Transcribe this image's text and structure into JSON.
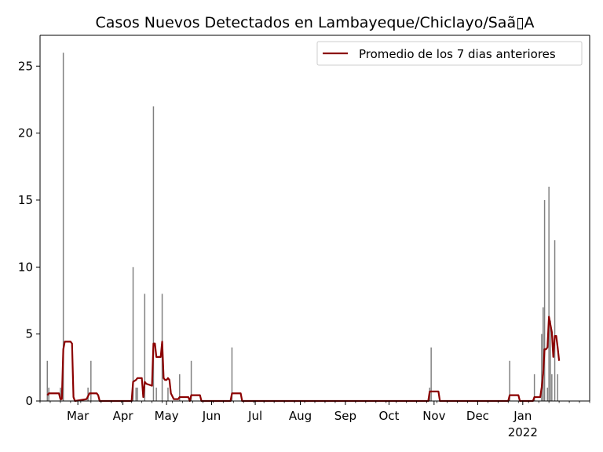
{
  "chart_data": {
    "type": "bar",
    "title": "Casos Nuevos Detectados en Lambayeque/Chiclayo/Saã▯A",
    "xlabel": "",
    "ylabel": "",
    "x_range": [
      "2021-02-03",
      "2022-02-16"
    ],
    "ylim": [
      0,
      27.3
    ],
    "y_ticks": [
      0,
      5,
      10,
      15,
      20,
      25
    ],
    "x_ticks": [
      {
        "date": "2021-03-01",
        "label": "Mar",
        "sublabel": ""
      },
      {
        "date": "2021-04-01",
        "label": "Apr",
        "sublabel": ""
      },
      {
        "date": "2021-05-01",
        "label": "May",
        "sublabel": ""
      },
      {
        "date": "2021-06-01",
        "label": "Jun",
        "sublabel": ""
      },
      {
        "date": "2021-07-01",
        "label": "Jul",
        "sublabel": ""
      },
      {
        "date": "2021-08-01",
        "label": "Aug",
        "sublabel": ""
      },
      {
        "date": "2021-09-01",
        "label": "Sep",
        "sublabel": ""
      },
      {
        "date": "2021-10-01",
        "label": "Oct",
        "sublabel": ""
      },
      {
        "date": "2021-11-01",
        "label": "Nov",
        "sublabel": ""
      },
      {
        "date": "2021-12-01",
        "label": "Dec",
        "sublabel": ""
      },
      {
        "date": "2022-01-01",
        "label": "Jan",
        "sublabel": "2022"
      }
    ],
    "grid": false,
    "legend_position": "top-right",
    "bar_color": "#808080",
    "line_color": "#8b0000",
    "bars": [
      {
        "date": "2021-02-08",
        "value": 3
      },
      {
        "date": "2021-02-09",
        "value": 1
      },
      {
        "date": "2021-02-17",
        "value": 1
      },
      {
        "date": "2021-02-19",
        "value": 26
      },
      {
        "date": "2021-03-08",
        "value": 1
      },
      {
        "date": "2021-03-10",
        "value": 3
      },
      {
        "date": "2021-04-08",
        "value": 10
      },
      {
        "date": "2021-04-10",
        "value": 1
      },
      {
        "date": "2021-04-11",
        "value": 1
      },
      {
        "date": "2021-04-16",
        "value": 8
      },
      {
        "date": "2021-04-22",
        "value": 22
      },
      {
        "date": "2021-04-24",
        "value": 1
      },
      {
        "date": "2021-04-28",
        "value": 8
      },
      {
        "date": "2021-05-02",
        "value": 1
      },
      {
        "date": "2021-05-10",
        "value": 2
      },
      {
        "date": "2021-05-18",
        "value": 3
      },
      {
        "date": "2021-06-15",
        "value": 4
      },
      {
        "date": "2021-10-29",
        "value": 1
      },
      {
        "date": "2021-10-30",
        "value": 4
      },
      {
        "date": "2021-12-23",
        "value": 3
      },
      {
        "date": "2022-01-09",
        "value": 2
      },
      {
        "date": "2022-01-14",
        "value": 5
      },
      {
        "date": "2022-01-15",
        "value": 7
      },
      {
        "date": "2022-01-16",
        "value": 15
      },
      {
        "date": "2022-01-18",
        "value": 1
      },
      {
        "date": "2022-01-19",
        "value": 16
      },
      {
        "date": "2022-01-20",
        "value": 6
      },
      {
        "date": "2022-01-21",
        "value": 2
      },
      {
        "date": "2022-01-23",
        "value": 12
      },
      {
        "date": "2022-01-25",
        "value": 2
      }
    ],
    "series": [
      {
        "name": "Promedio de los 7 dias anteriores",
        "values": [
          [
            "2021-02-08",
            0.43
          ],
          [
            "2021-02-09",
            0.57
          ],
          [
            "2021-02-16",
            0.57
          ],
          [
            "2021-02-17",
            0.14
          ],
          [
            "2021-02-18",
            0.14
          ],
          [
            "2021-02-19",
            3.86
          ],
          [
            "2021-02-20",
            4.43
          ],
          [
            "2021-02-24",
            4.43
          ],
          [
            "2021-02-25",
            4.29
          ],
          [
            "2021-02-26",
            0.29
          ],
          [
            "2021-02-27",
            0.0
          ],
          [
            "2021-03-07",
            0.14
          ],
          [
            "2021-03-09",
            0.57
          ],
          [
            "2021-03-14",
            0.57
          ],
          [
            "2021-03-15",
            0.43
          ],
          [
            "2021-03-16",
            0.0
          ],
          [
            "2021-04-07",
            0.0
          ],
          [
            "2021-04-08",
            1.43
          ],
          [
            "2021-04-10",
            1.57
          ],
          [
            "2021-04-11",
            1.71
          ],
          [
            "2021-04-14",
            1.71
          ],
          [
            "2021-04-15",
            0.29
          ],
          [
            "2021-04-16",
            1.43
          ],
          [
            "2021-04-17",
            1.29
          ],
          [
            "2021-04-21",
            1.14
          ],
          [
            "2021-04-22",
            4.29
          ],
          [
            "2021-04-23",
            4.29
          ],
          [
            "2021-04-24",
            3.29
          ],
          [
            "2021-04-27",
            3.29
          ],
          [
            "2021-04-28",
            4.43
          ],
          [
            "2021-04-29",
            1.71
          ],
          [
            "2021-04-30",
            1.57
          ],
          [
            "2021-05-01",
            1.57
          ],
          [
            "2021-05-02",
            1.71
          ],
          [
            "2021-05-03",
            1.57
          ],
          [
            "2021-05-04",
            0.57
          ],
          [
            "2021-05-06",
            0.14
          ],
          [
            "2021-05-09",
            0.14
          ],
          [
            "2021-05-10",
            0.29
          ],
          [
            "2021-05-16",
            0.29
          ],
          [
            "2021-05-17",
            0.0
          ],
          [
            "2021-05-18",
            0.43
          ],
          [
            "2021-05-24",
            0.43
          ],
          [
            "2021-05-25",
            0.0
          ],
          [
            "2021-06-14",
            0.0
          ],
          [
            "2021-06-15",
            0.57
          ],
          [
            "2021-06-21",
            0.57
          ],
          [
            "2021-06-22",
            0.0
          ],
          [
            "2021-10-28",
            0.0
          ],
          [
            "2021-10-29",
            0.71
          ],
          [
            "2021-11-04",
            0.71
          ],
          [
            "2021-11-05",
            0.0
          ],
          [
            "2021-12-22",
            0.0
          ],
          [
            "2021-12-23",
            0.43
          ],
          [
            "2021-12-29",
            0.43
          ],
          [
            "2021-12-30",
            0.0
          ],
          [
            "2022-01-08",
            0.0
          ],
          [
            "2022-01-09",
            0.29
          ],
          [
            "2022-01-13",
            0.29
          ],
          [
            "2022-01-14",
            1.0
          ],
          [
            "2022-01-15",
            2.0
          ],
          [
            "2022-01-16",
            3.86
          ],
          [
            "2022-01-17",
            3.86
          ],
          [
            "2022-01-18",
            4.0
          ],
          [
            "2022-01-19",
            6.29
          ],
          [
            "2022-01-20",
            5.71
          ],
          [
            "2022-01-21",
            5.14
          ],
          [
            "2022-01-22",
            3.29
          ],
          [
            "2022-01-23",
            4.86
          ],
          [
            "2022-01-24",
            4.86
          ],
          [
            "2022-01-25",
            4.0
          ],
          [
            "2022-01-26",
            3.0
          ]
        ]
      }
    ]
  }
}
